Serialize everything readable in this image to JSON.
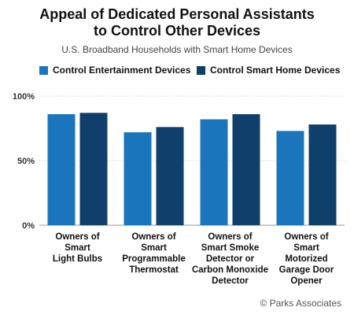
{
  "chart_data": {
    "type": "bar",
    "title": [
      "Appeal of Dedicated Personal Assistants",
      "to Control Other Devices"
    ],
    "subtitle": "U.S. Broadband Households with Smart Home Devices",
    "categories": [
      [
        "Owners of",
        "Smart",
        "Light Bulbs"
      ],
      [
        "Owners of",
        "Smart",
        "Programmable",
        "Thermostat"
      ],
      [
        "Owners of",
        "Smart Smoke",
        "Detector or",
        "Carbon Monoxide",
        "Detector"
      ],
      [
        "Owners of",
        "Smart",
        "Motorized",
        "Garage Door",
        "Opener"
      ]
    ],
    "series": [
      {
        "name": "Control Entertainment Devices",
        "color": "#1b75bc",
        "values": [
          86,
          72,
          82,
          73
        ]
      },
      {
        "name": "Control Smart Home Devices",
        "color": "#0f3f6b",
        "values": [
          87,
          76,
          86,
          78
        ]
      }
    ],
    "ylim": [
      0,
      100
    ],
    "yticks": [
      0,
      50,
      100
    ],
    "ytick_labels": [
      "0%",
      "50%",
      "100%"
    ],
    "grid": true,
    "legend": "top"
  },
  "credit": "© Parks Associates"
}
